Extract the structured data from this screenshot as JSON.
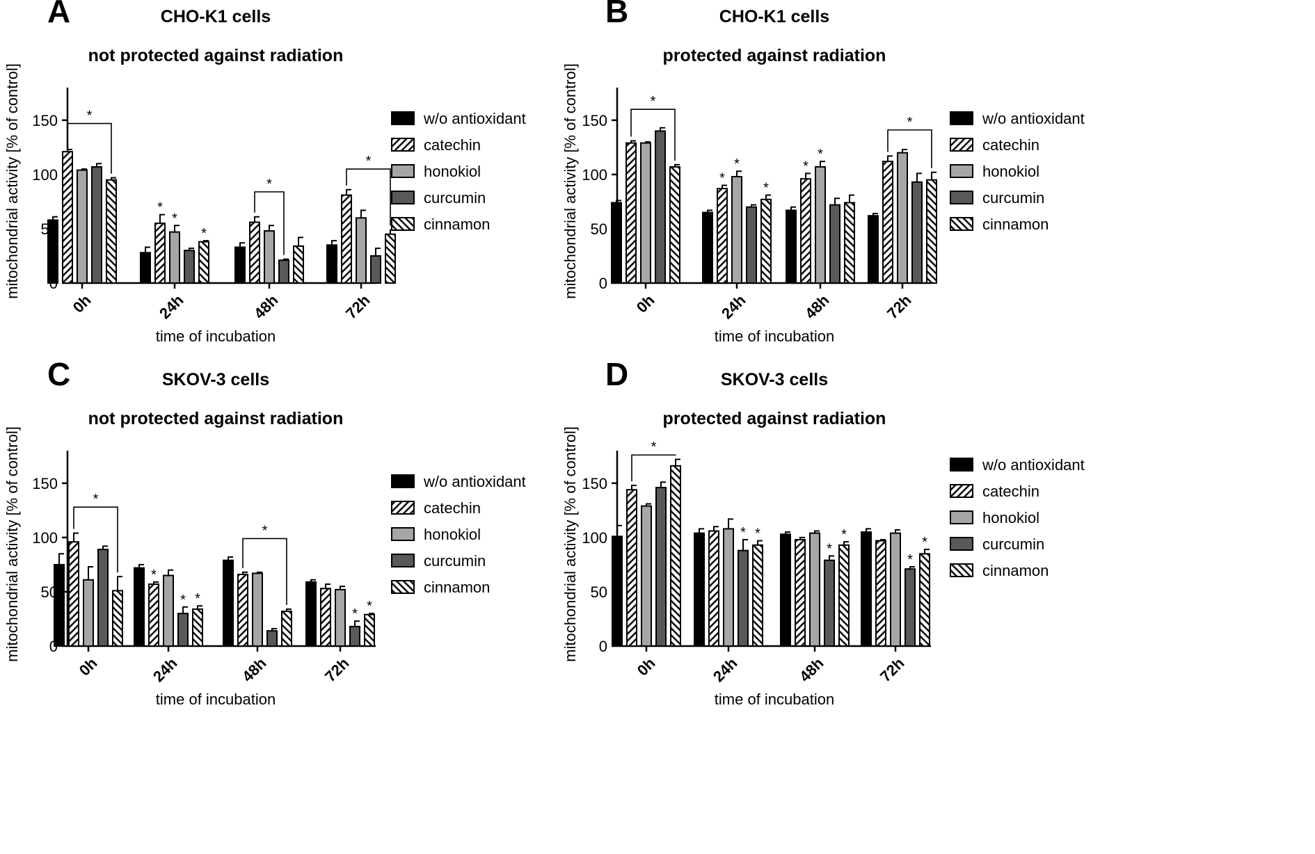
{
  "colors": {
    "w/o antioxidant": "#000000",
    "catechin": "pattern-diagonal-up",
    "honokiol": "#a6a6a6",
    "curcumin": "#595959",
    "cinnamon": "pattern-diagonal-down",
    "axis": "#000000"
  },
  "chart_data": [
    {
      "panel": "A",
      "type": "bar",
      "title": [
        "CHO-K1 cells",
        "not protected against radiation"
      ],
      "xlabel": "time of incubation",
      "ylabel": "mitochondrial activity [% of control]",
      "ylim": [
        0,
        180
      ],
      "yticks": [
        0,
        50,
        100,
        150
      ],
      "categories": [
        "0h",
        "24h",
        "48h",
        "72h"
      ],
      "legend": [
        "w/o antioxidant",
        "catechin",
        "honokiol",
        "curcumin",
        "cinnamon"
      ],
      "series": [
        {
          "name": "w/o antioxidant",
          "values": [
            58,
            28,
            33,
            35
          ],
          "errors": [
            3,
            5,
            4,
            4
          ]
        },
        {
          "name": "catechin",
          "values": [
            121,
            55,
            56,
            81
          ],
          "errors": [
            2,
            8,
            5,
            5
          ]
        },
        {
          "name": "honokiol",
          "values": [
            104,
            47,
            48,
            60
          ],
          "errors": [
            1,
            6,
            5,
            7
          ]
        },
        {
          "name": "curcumin",
          "values": [
            107,
            30,
            21,
            25
          ],
          "errors": [
            3,
            2,
            1,
            7
          ]
        },
        {
          "name": "cinnamon",
          "values": [
            95,
            38,
            34,
            45
          ],
          "errors": [
            2,
            1,
            8,
            4
          ]
        }
      ],
      "significance": [
        {
          "category": 1,
          "series": 1
        },
        {
          "category": 1,
          "series": 2
        },
        {
          "category": 1,
          "series": 4
        }
      ],
      "brackets": [
        {
          "category": 0,
          "from": 1,
          "to": 4,
          "level": 147
        },
        {
          "category": 2,
          "from": 1,
          "to": 3,
          "level": 84
        },
        {
          "category": 3,
          "from": 1,
          "to": 4,
          "level": 105
        }
      ],
      "annotations": [
        "*",
        "*",
        "*",
        "*",
        "*",
        "*"
      ]
    },
    {
      "panel": "B",
      "type": "bar",
      "title": [
        "CHO-K1 cells",
        "protected against radiation"
      ],
      "xlabel": "time of incubation",
      "ylabel": "mitochondrial activity [% of control]",
      "ylim": [
        0,
        180
      ],
      "yticks": [
        0,
        50,
        100,
        150
      ],
      "categories": [
        "0h",
        "24h",
        "48h",
        "72h"
      ],
      "legend": [
        "w/o antioxidant",
        "catechin",
        "honokiol",
        "curcumin",
        "cinnamon"
      ],
      "series": [
        {
          "name": "w/o antioxidant",
          "values": [
            74,
            65,
            67,
            62
          ],
          "errors": [
            2,
            2,
            3,
            2
          ]
        },
        {
          "name": "catechin",
          "values": [
            129,
            87,
            96,
            112
          ],
          "errors": [
            2,
            3,
            5,
            5
          ]
        },
        {
          "name": "honokiol",
          "values": [
            129,
            98,
            107,
            120
          ],
          "errors": [
            1,
            5,
            5,
            3
          ]
        },
        {
          "name": "curcumin",
          "values": [
            140,
            70,
            72,
            93
          ],
          "errors": [
            3,
            2,
            6,
            8
          ]
        },
        {
          "name": "cinnamon",
          "values": [
            107,
            77,
            74,
            95
          ],
          "errors": [
            2,
            4,
            7,
            7
          ]
        }
      ],
      "significance": [
        {
          "category": 1,
          "series": 1
        },
        {
          "category": 1,
          "series": 2
        },
        {
          "category": 1,
          "series": 4
        },
        {
          "category": 2,
          "series": 1
        },
        {
          "category": 2,
          "series": 2
        }
      ],
      "brackets": [
        {
          "category": 0,
          "from": 1,
          "to": 4,
          "level": 160
        },
        {
          "category": 3,
          "from": 1,
          "to": 4,
          "level": 141
        }
      ],
      "annotations": [
        "*",
        "*",
        "*",
        "*",
        "*",
        "*",
        "*"
      ]
    },
    {
      "panel": "C",
      "type": "bar",
      "title": [
        "SKOV-3 cells",
        "not protected against radiation"
      ],
      "xlabel": "time of incubation",
      "ylabel": "mitochondrial activity [% of control]",
      "ylim": [
        0,
        180
      ],
      "yticks": [
        0,
        50,
        100,
        150
      ],
      "categories": [
        "0h",
        "24h",
        "48h",
        "72h"
      ],
      "legend": [
        "w/o antioxidant",
        "catechin",
        "honokiol",
        "curcumin",
        "cinnamon"
      ],
      "series": [
        {
          "name": "w/o antioxidant",
          "values": [
            75,
            72,
            79,
            59
          ],
          "errors": [
            10,
            3,
            3,
            2
          ]
        },
        {
          "name": "catechin",
          "values": [
            96,
            57,
            66,
            53
          ],
          "errors": [
            8,
            2,
            2,
            4
          ]
        },
        {
          "name": "honokiol",
          "values": [
            61,
            65,
            67,
            52
          ],
          "errors": [
            12,
            5,
            1,
            3
          ]
        },
        {
          "name": "curcumin",
          "values": [
            89,
            30,
            14,
            18
          ],
          "errors": [
            3,
            6,
            2,
            5
          ]
        },
        {
          "name": "cinnamon",
          "values": [
            51,
            34,
            32,
            29
          ],
          "errors": [
            13,
            3,
            2,
            1
          ]
        }
      ],
      "significance": [
        {
          "category": 1,
          "series": 1
        },
        {
          "category": 1,
          "series": 3
        },
        {
          "category": 1,
          "series": 4
        },
        {
          "category": 3,
          "series": 3
        },
        {
          "category": 3,
          "series": 4
        }
      ],
      "brackets": [
        {
          "category": 0,
          "from": 1,
          "to": 4,
          "level": 128
        },
        {
          "category": 2,
          "from": 1,
          "to": 4,
          "level": 99
        }
      ],
      "annotations": [
        "*",
        "*",
        "*",
        "*",
        "*",
        "*",
        "*"
      ]
    },
    {
      "panel": "D",
      "type": "bar",
      "title": [
        "SKOV-3 cells",
        "protected against radiation"
      ],
      "xlabel": "time of incubation",
      "ylabel": "mitochondrial activity [% of control]",
      "ylim": [
        0,
        180
      ],
      "yticks": [
        0,
        50,
        100,
        150
      ],
      "categories": [
        "0h",
        "24h",
        "48h",
        "72h"
      ],
      "legend": [
        "w/o antioxidant",
        "catechin",
        "honokiol",
        "curcumin",
        "cinnamon"
      ],
      "series": [
        {
          "name": "w/o antioxidant",
          "values": [
            101,
            104,
            103,
            105
          ],
          "errors": [
            10,
            4,
            2,
            3
          ]
        },
        {
          "name": "catechin",
          "values": [
            144,
            106,
            98,
            97
          ],
          "errors": [
            4,
            4,
            2,
            1
          ]
        },
        {
          "name": "honokiol",
          "values": [
            129,
            108,
            104,
            104
          ],
          "errors": [
            2,
            9,
            2,
            3
          ]
        },
        {
          "name": "curcumin",
          "values": [
            146,
            88,
            79,
            71
          ],
          "errors": [
            5,
            10,
            4,
            2
          ]
        },
        {
          "name": "cinnamon",
          "values": [
            166,
            93,
            93,
            85
          ],
          "errors": [
            6,
            4,
            3,
            4
          ]
        }
      ],
      "significance": [
        {
          "category": 1,
          "series": 3
        },
        {
          "category": 1,
          "series": 4
        },
        {
          "category": 2,
          "series": 3
        },
        {
          "category": 2,
          "series": 4
        },
        {
          "category": 3,
          "series": 3
        },
        {
          "category": 3,
          "series": 4
        }
      ],
      "brackets": [
        {
          "category": 0,
          "from": 1,
          "to": 4,
          "level": 176
        }
      ],
      "annotations": [
        "*",
        "*",
        "*",
        "*",
        "*",
        "*",
        "*"
      ]
    }
  ]
}
